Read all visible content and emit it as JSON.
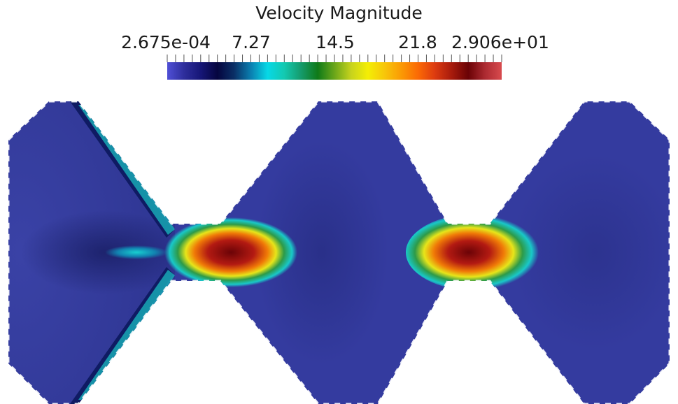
{
  "legend": {
    "title": "Velocity Magnitude",
    "min_label": "2.675e-04",
    "tick1_label": "7.27",
    "tick2_label": "14.5",
    "tick3_label": "21.8",
    "max_label": "2.906e+01",
    "range": [
      0.0002675,
      29.06
    ]
  },
  "colormap": [
    "#4f4fd6",
    "#2e2e9c",
    "#161677",
    "#05053f",
    "#0a2f66",
    "#0a7fb0",
    "#07d8e6",
    "#13c9b0",
    "#159b6c",
    "#0f7a18",
    "#6aa61a",
    "#c7d31d",
    "#f4ee05",
    "#f7c60a",
    "#fb9a04",
    "#fb6a05",
    "#dd3b10",
    "#a81b0c",
    "#6a0205",
    "#ac2a31",
    "#d84b4e"
  ],
  "field": {
    "background_color": "#ffffff",
    "domain_color": "#343b9f",
    "dark_band_color": "#0e1250",
    "hotspots": [
      {
        "peak_color": "#7a0a0c"
      },
      {
        "peak_color": "#7a0a0c"
      }
    ]
  }
}
